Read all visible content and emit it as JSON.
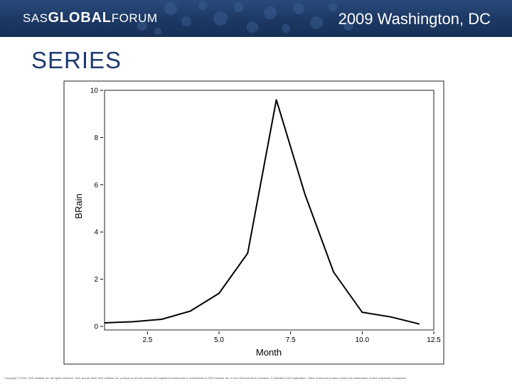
{
  "header": {
    "logo_left": "SAS",
    "logo_mid": "GLOBAL",
    "logo_right": "FORUM",
    "event": "2009 Washington, DC",
    "colors": {
      "banner": "#1c3863",
      "title": "#1e3b70"
    }
  },
  "slide": {
    "title": "SERIES"
  },
  "chart_data": {
    "type": "line",
    "title": "",
    "xlabel": "Month",
    "ylabel": "BRain",
    "xlim": [
      1,
      12.5
    ],
    "ylim": [
      0,
      10
    ],
    "x_ticks": [
      "2.5",
      "5.0",
      "7.5",
      "10.0",
      "12.5"
    ],
    "x_tick_values": [
      2.5,
      5.0,
      7.5,
      10.0,
      12.5
    ],
    "y_ticks": [
      "0",
      "2",
      "4",
      "6",
      "8",
      "10"
    ],
    "y_tick_values": [
      0,
      2,
      4,
      6,
      8,
      10
    ],
    "grid": false,
    "legend": "none",
    "series": [
      {
        "x": [
          1,
          2,
          3,
          4,
          5,
          6,
          7,
          8,
          9,
          10,
          11,
          12
        ],
        "values": [
          0.15,
          0.2,
          0.3,
          0.65,
          1.4,
          3.1,
          9.6,
          5.6,
          2.3,
          0.6,
          0.4,
          0.1
        ]
      }
    ]
  },
  "footer": {
    "copyright": "Copyright © 2009, SAS Institute Inc. All rights reserved. SAS and all other SAS Institute Inc. product or service names are registered trademarks or trademarks of SAS Institute Inc. in the USA and other countries. ® indicates USA registration. Other brand and product names are trademarks of their respective companies."
  }
}
